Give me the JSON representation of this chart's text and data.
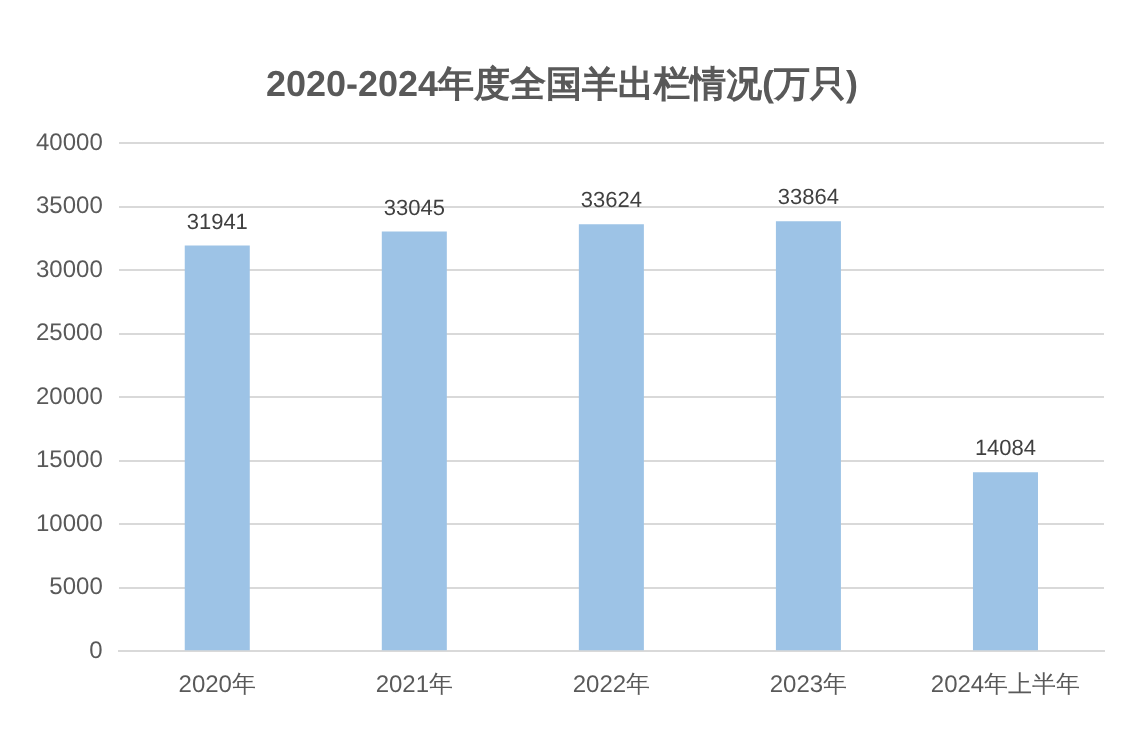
{
  "chart_data": {
    "type": "bar",
    "title": "2020-2024年度全国羊出栏情况(万只)",
    "categories": [
      "2020年",
      "2021年",
      "2022年",
      "2023年",
      "2024年上半年"
    ],
    "values": [
      31941,
      33045,
      33624,
      33864,
      14084
    ],
    "color": "#9dc3e6",
    "ylim": [
      0,
      40000
    ],
    "yticks": [
      0,
      5000,
      10000,
      15000,
      20000,
      25000,
      30000,
      35000,
      40000
    ],
    "grid": "y",
    "legend": false,
    "data_labels": true
  }
}
